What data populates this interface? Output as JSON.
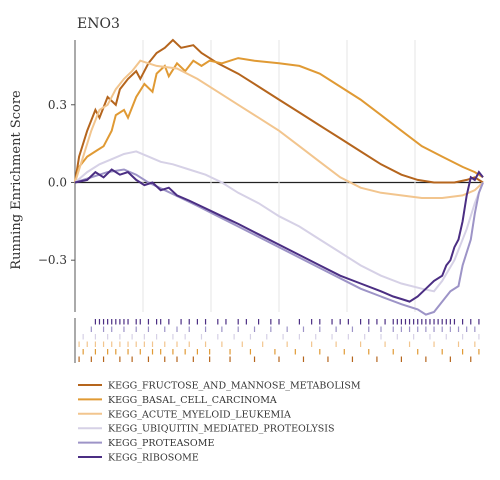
{
  "chart_data": {
    "type": "line",
    "title": "ENO3",
    "ylabel": "Running Enrichment Score",
    "xlabel": "",
    "ylim": [
      -0.5,
      0.55
    ],
    "yticks": [
      -0.3,
      0.0,
      0.3
    ],
    "ytick_labels": [
      "−0.3",
      "0.0",
      "0.3"
    ],
    "grid": "vertical gridlines",
    "legend_position": "bottom",
    "x_domain": [
      0,
      100
    ],
    "series": [
      {
        "name": "KEGG_FRUCTOSE_AND_MANNOSE_METABOLISM",
        "color": "#b5651d",
        "points": [
          [
            0,
            0.0
          ],
          [
            1,
            0.1
          ],
          [
            3,
            0.2
          ],
          [
            5,
            0.28
          ],
          [
            6,
            0.25
          ],
          [
            8,
            0.33
          ],
          [
            10,
            0.3
          ],
          [
            11,
            0.36
          ],
          [
            13,
            0.4
          ],
          [
            15,
            0.43
          ],
          [
            16,
            0.4
          ],
          [
            18,
            0.46
          ],
          [
            20,
            0.5
          ],
          [
            22,
            0.52
          ],
          [
            24,
            0.55
          ],
          [
            26,
            0.52
          ],
          [
            29,
            0.53
          ],
          [
            31,
            0.5
          ],
          [
            35,
            0.46
          ],
          [
            40,
            0.42
          ],
          [
            45,
            0.37
          ],
          [
            50,
            0.32
          ],
          [
            55,
            0.27
          ],
          [
            60,
            0.22
          ],
          [
            65,
            0.17
          ],
          [
            70,
            0.12
          ],
          [
            75,
            0.07
          ],
          [
            80,
            0.03
          ],
          [
            84,
            0.01
          ],
          [
            88,
            0.0
          ],
          [
            93,
            0.0
          ],
          [
            96,
            0.01
          ],
          [
            98,
            0.02
          ],
          [
            100,
            0.0
          ]
        ]
      },
      {
        "name": "KEGG_BASAL_CELL_CARCINOMA",
        "color": "#e09a34",
        "points": [
          [
            0,
            0.0
          ],
          [
            1,
            0.06
          ],
          [
            3,
            0.1
          ],
          [
            5,
            0.12
          ],
          [
            7,
            0.14
          ],
          [
            9,
            0.2
          ],
          [
            10,
            0.26
          ],
          [
            12,
            0.28
          ],
          [
            13,
            0.25
          ],
          [
            15,
            0.33
          ],
          [
            17,
            0.38
          ],
          [
            19,
            0.35
          ],
          [
            20,
            0.42
          ],
          [
            22,
            0.45
          ],
          [
            23,
            0.41
          ],
          [
            25,
            0.46
          ],
          [
            27,
            0.43
          ],
          [
            29,
            0.47
          ],
          [
            31,
            0.45
          ],
          [
            33,
            0.47
          ],
          [
            36,
            0.46
          ],
          [
            40,
            0.48
          ],
          [
            44,
            0.47
          ],
          [
            50,
            0.46
          ],
          [
            55,
            0.45
          ],
          [
            60,
            0.42
          ],
          [
            65,
            0.37
          ],
          [
            70,
            0.32
          ],
          [
            75,
            0.26
          ],
          [
            80,
            0.2
          ],
          [
            85,
            0.14
          ],
          [
            90,
            0.1
          ],
          [
            95,
            0.06
          ],
          [
            98,
            0.04
          ],
          [
            100,
            0.02
          ]
        ]
      },
      {
        "name": "KEGG_ACUTE_MYELOID_LEUKEMIA",
        "color": "#f2c58e",
        "points": [
          [
            0,
            0.0
          ],
          [
            2,
            0.1
          ],
          [
            4,
            0.2
          ],
          [
            6,
            0.28
          ],
          [
            8,
            0.3
          ],
          [
            10,
            0.36
          ],
          [
            12,
            0.4
          ],
          [
            14,
            0.43
          ],
          [
            16,
            0.47
          ],
          [
            18,
            0.46
          ],
          [
            20,
            0.45
          ],
          [
            25,
            0.44
          ],
          [
            30,
            0.4
          ],
          [
            35,
            0.35
          ],
          [
            40,
            0.3
          ],
          [
            45,
            0.25
          ],
          [
            50,
            0.2
          ],
          [
            55,
            0.14
          ],
          [
            60,
            0.08
          ],
          [
            65,
            0.02
          ],
          [
            70,
            -0.02
          ],
          [
            75,
            -0.04
          ],
          [
            80,
            -0.05
          ],
          [
            85,
            -0.06
          ],
          [
            90,
            -0.06
          ],
          [
            95,
            -0.05
          ],
          [
            98,
            -0.03
          ],
          [
            100,
            0.0
          ]
        ]
      },
      {
        "name": "KEGG_UBIQUITIN_MEDIATED_PROTEOLYSIS",
        "color": "#d6d1e6",
        "points": [
          [
            0,
            0.0
          ],
          [
            3,
            0.04
          ],
          [
            6,
            0.07
          ],
          [
            9,
            0.09
          ],
          [
            12,
            0.11
          ],
          [
            15,
            0.12
          ],
          [
            18,
            0.1
          ],
          [
            21,
            0.08
          ],
          [
            24,
            0.07
          ],
          [
            28,
            0.05
          ],
          [
            32,
            0.03
          ],
          [
            36,
            0.0
          ],
          [
            40,
            -0.04
          ],
          [
            45,
            -0.08
          ],
          [
            50,
            -0.13
          ],
          [
            55,
            -0.17
          ],
          [
            60,
            -0.22
          ],
          [
            65,
            -0.27
          ],
          [
            70,
            -0.32
          ],
          [
            75,
            -0.36
          ],
          [
            80,
            -0.39
          ],
          [
            85,
            -0.41
          ],
          [
            88,
            -0.42
          ],
          [
            90,
            -0.38
          ],
          [
            93,
            -0.3
          ],
          [
            96,
            -0.18
          ],
          [
            98,
            -0.08
          ],
          [
            100,
            0.0
          ]
        ]
      },
      {
        "name": "KEGG_PROTEASOME",
        "color": "#9d94c7",
        "points": [
          [
            0,
            0.0
          ],
          [
            4,
            0.02
          ],
          [
            8,
            0.04
          ],
          [
            12,
            0.05
          ],
          [
            15,
            0.03
          ],
          [
            18,
            0.0
          ],
          [
            22,
            -0.03
          ],
          [
            26,
            -0.06
          ],
          [
            30,
            -0.09
          ],
          [
            35,
            -0.13
          ],
          [
            40,
            -0.17
          ],
          [
            45,
            -0.21
          ],
          [
            50,
            -0.25
          ],
          [
            55,
            -0.29
          ],
          [
            60,
            -0.33
          ],
          [
            65,
            -0.37
          ],
          [
            70,
            -0.41
          ],
          [
            75,
            -0.44
          ],
          [
            80,
            -0.47
          ],
          [
            84,
            -0.49
          ],
          [
            86,
            -0.51
          ],
          [
            88,
            -0.5
          ],
          [
            90,
            -0.46
          ],
          [
            92,
            -0.42
          ],
          [
            94,
            -0.4
          ],
          [
            95,
            -0.32
          ],
          [
            97,
            -0.22
          ],
          [
            98,
            -0.12
          ],
          [
            99,
            -0.04
          ],
          [
            100,
            0.0
          ]
        ]
      },
      {
        "name": "KEGG_RIBOSOME",
        "color": "#4b2e83",
        "points": [
          [
            0,
            0.0
          ],
          [
            3,
            0.01
          ],
          [
            5,
            0.04
          ],
          [
            7,
            0.02
          ],
          [
            9,
            0.05
          ],
          [
            11,
            0.03
          ],
          [
            13,
            0.04
          ],
          [
            15,
            0.01
          ],
          [
            17,
            -0.01
          ],
          [
            19,
            0.0
          ],
          [
            21,
            -0.03
          ],
          [
            23,
            -0.02
          ],
          [
            25,
            -0.05
          ],
          [
            28,
            -0.07
          ],
          [
            32,
            -0.1
          ],
          [
            36,
            -0.13
          ],
          [
            40,
            -0.16
          ],
          [
            45,
            -0.2
          ],
          [
            50,
            -0.24
          ],
          [
            55,
            -0.28
          ],
          [
            60,
            -0.32
          ],
          [
            65,
            -0.36
          ],
          [
            70,
            -0.39
          ],
          [
            75,
            -0.42
          ],
          [
            78,
            -0.44
          ],
          [
            80,
            -0.45
          ],
          [
            82,
            -0.46
          ],
          [
            84,
            -0.44
          ],
          [
            86,
            -0.41
          ],
          [
            88,
            -0.38
          ],
          [
            90,
            -0.36
          ],
          [
            91,
            -0.32
          ],
          [
            92,
            -0.3
          ],
          [
            93,
            -0.25
          ],
          [
            94,
            -0.22
          ],
          [
            95,
            -0.15
          ],
          [
            96,
            -0.05
          ],
          [
            97,
            0.02
          ],
          [
            98,
            0.01
          ],
          [
            99,
            0.04
          ],
          [
            100,
            0.02
          ]
        ]
      }
    ],
    "rug": [
      {
        "series": "KEGG_RIBOSOME",
        "color": "#4b2e83",
        "ticks": [
          5,
          6,
          7,
          8,
          9,
          10,
          11,
          12,
          13,
          15,
          16,
          18,
          20,
          21,
          23,
          26,
          28,
          30,
          32,
          35,
          37,
          40,
          42,
          45,
          48,
          50,
          55,
          58,
          60,
          63,
          65,
          67,
          70,
          72,
          74,
          76,
          78,
          79,
          80,
          81,
          82,
          83,
          84,
          85,
          86,
          87,
          88,
          89,
          90,
          91,
          92,
          93,
          95,
          97,
          99
        ]
      },
      {
        "series": "KEGG_PROTEASOME",
        "color": "#9d94c7",
        "ticks": [
          4,
          7,
          9,
          12,
          15,
          18,
          22,
          25,
          28,
          32,
          36,
          40,
          44,
          48,
          52,
          56,
          60,
          64,
          68,
          72,
          75,
          78,
          80,
          82,
          84,
          86,
          88,
          90,
          92,
          94,
          96,
          98
        ]
      },
      {
        "series": "KEGG_UBIQUITIN_MEDIATED_PROTEOLYSIS",
        "color": "#d6d1e6",
        "ticks": [
          2,
          5,
          8,
          11,
          14,
          17,
          20,
          24,
          27,
          31,
          35,
          39,
          43,
          47,
          51,
          55,
          59,
          63,
          67,
          71,
          75,
          79,
          83,
          87,
          91,
          95,
          99
        ]
      },
      {
        "series": "KEGG_ACUTE_MYELOID_LEUKEMIA",
        "color": "#f2c58e",
        "ticks": [
          1,
          3,
          5,
          7,
          9,
          11,
          13,
          15,
          17,
          19,
          22,
          25,
          28,
          32,
          36,
          41,
          46,
          52,
          58,
          64,
          70,
          76,
          82,
          88,
          94,
          98
        ]
      },
      {
        "series": "KEGG_BASAL_CELL_CARCINOMA",
        "color": "#e09a34",
        "ticks": [
          2,
          5,
          8,
          10,
          13,
          16,
          19,
          21,
          24,
          27,
          30,
          33,
          38,
          43,
          49,
          54,
          60,
          66,
          72,
          78,
          84,
          90,
          95,
          99
        ]
      },
      {
        "series": "KEGG_FRUCTOSE_AND_MANNOSE_METABOLISM",
        "color": "#b5651d",
        "ticks": [
          1,
          4,
          7,
          11,
          14,
          18,
          22,
          25,
          29,
          33,
          38,
          44,
          50,
          56,
          62,
          68,
          74,
          80,
          86,
          92,
          97
        ]
      }
    ]
  }
}
